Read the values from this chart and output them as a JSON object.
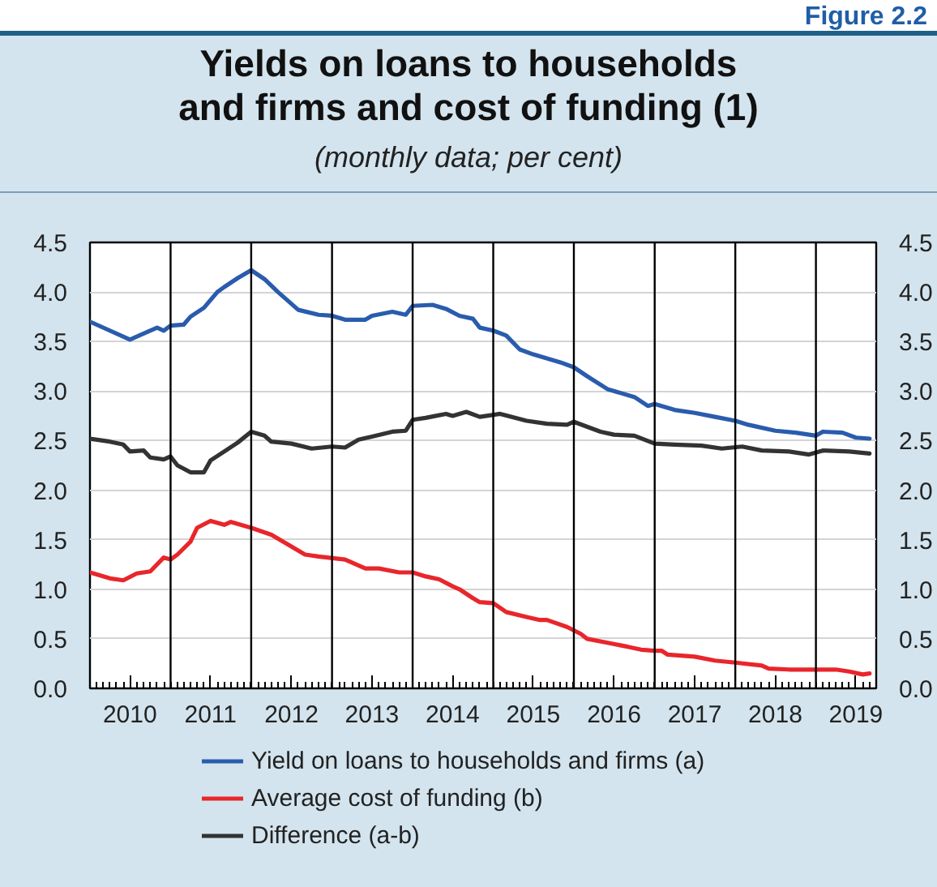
{
  "chart_data": {
    "type": "line",
    "title": "Yields on loans to households and firms and cost of funding (1)",
    "subtitle": "(monthly data; per cent)",
    "annotations": [
      "Figure 2.2"
    ],
    "xlim": [
      "2010-01",
      "2019-10"
    ],
    "xticks": [
      {
        "value": "2010-02",
        "label": null
      },
      {
        "value": "2010-03",
        "label": null
      },
      {
        "value": "2010-04",
        "label": null
      },
      {
        "value": "2010-05",
        "label": null
      },
      {
        "value": "2010-06",
        "label": null
      },
      {
        "value": "2010-07",
        "label": "2010"
      },
      {
        "value": "2010-08",
        "label": null
      },
      {
        "value": "2010-09",
        "label": null
      },
      {
        "value": "2010-10",
        "label": null
      },
      {
        "value": "2010-11",
        "label": null
      },
      {
        "value": "2010-12",
        "label": null
      },
      {
        "value": "2011-01",
        "label": null
      },
      {
        "value": "2011-02",
        "label": null
      },
      {
        "value": "2011-03",
        "label": null
      },
      {
        "value": "2011-04",
        "label": null
      },
      {
        "value": "2011-05",
        "label": null
      },
      {
        "value": "2011-06",
        "label": null
      },
      {
        "value": "2011-07",
        "label": "2011"
      },
      {
        "value": "2011-08",
        "label": null
      },
      {
        "value": "2011-09",
        "label": null
      },
      {
        "value": "2011-10",
        "label": null
      },
      {
        "value": "2011-11",
        "label": null
      },
      {
        "value": "2011-12",
        "label": null
      },
      {
        "value": "2012-01",
        "label": null
      },
      {
        "value": "2012-02",
        "label": null
      },
      {
        "value": "2012-03",
        "label": null
      },
      {
        "value": "2012-04",
        "label": null
      },
      {
        "value": "2012-05",
        "label": null
      },
      {
        "value": "2012-06",
        "label": null
      },
      {
        "value": "2012-07",
        "label": "2012"
      },
      {
        "value": "2012-08",
        "label": null
      },
      {
        "value": "2012-09",
        "label": null
      },
      {
        "value": "2012-10",
        "label": null
      },
      {
        "value": "2012-11",
        "label": null
      },
      {
        "value": "2012-12",
        "label": null
      },
      {
        "value": "2013-01",
        "label": null
      },
      {
        "value": "2013-02",
        "label": null
      },
      {
        "value": "2013-03",
        "label": null
      },
      {
        "value": "2013-04",
        "label": null
      },
      {
        "value": "2013-05",
        "label": null
      },
      {
        "value": "2013-06",
        "label": null
      },
      {
        "value": "2013-07",
        "label": "2013"
      },
      {
        "value": "2013-08",
        "label": null
      },
      {
        "value": "2013-09",
        "label": null
      },
      {
        "value": "2013-10",
        "label": null
      },
      {
        "value": "2013-11",
        "label": null
      },
      {
        "value": "2013-12",
        "label": null
      },
      {
        "value": "2014-01",
        "label": null
      },
      {
        "value": "2014-02",
        "label": null
      },
      {
        "value": "2014-03",
        "label": null
      },
      {
        "value": "2014-04",
        "label": null
      },
      {
        "value": "2014-05",
        "label": null
      },
      {
        "value": "2014-06",
        "label": null
      },
      {
        "value": "2014-07",
        "label": "2014"
      },
      {
        "value": "2014-08",
        "label": null
      },
      {
        "value": "2014-09",
        "label": null
      },
      {
        "value": "2014-10",
        "label": null
      },
      {
        "value": "2014-11",
        "label": null
      },
      {
        "value": "2014-12",
        "label": null
      },
      {
        "value": "2015-01",
        "label": null
      },
      {
        "value": "2015-02",
        "label": null
      },
      {
        "value": "2015-03",
        "label": null
      },
      {
        "value": "2015-04",
        "label": null
      },
      {
        "value": "2015-05",
        "label": null
      },
      {
        "value": "2015-06",
        "label": null
      },
      {
        "value": "2015-07",
        "label": "2015"
      },
      {
        "value": "2015-08",
        "label": null
      },
      {
        "value": "2015-09",
        "label": null
      },
      {
        "value": "2015-10",
        "label": null
      },
      {
        "value": "2015-11",
        "label": null
      },
      {
        "value": "2015-12",
        "label": null
      },
      {
        "value": "2016-01",
        "label": null
      },
      {
        "value": "2016-02",
        "label": null
      },
      {
        "value": "2016-03",
        "label": null
      },
      {
        "value": "2016-04",
        "label": null
      },
      {
        "value": "2016-05",
        "label": null
      },
      {
        "value": "2016-06",
        "label": null
      },
      {
        "value": "2016-07",
        "label": "2016"
      },
      {
        "value": "2016-08",
        "label": null
      },
      {
        "value": "2016-09",
        "label": null
      },
      {
        "value": "2016-10",
        "label": null
      },
      {
        "value": "2016-11",
        "label": null
      },
      {
        "value": "2016-12",
        "label": null
      },
      {
        "value": "2017-01",
        "label": null
      },
      {
        "value": "2017-02",
        "label": null
      },
      {
        "value": "2017-03",
        "label": null
      },
      {
        "value": "2017-04",
        "label": null
      },
      {
        "value": "2017-05",
        "label": null
      },
      {
        "value": "2017-06",
        "label": null
      },
      {
        "value": "2017-07",
        "label": "2017"
      },
      {
        "value": "2017-08",
        "label": null
      },
      {
        "value": "2017-09",
        "label": null
      },
      {
        "value": "2017-10",
        "label": null
      },
      {
        "value": "2017-11",
        "label": null
      },
      {
        "value": "2017-12",
        "label": null
      },
      {
        "value": "2018-01",
        "label": null
      },
      {
        "value": "2018-02",
        "label": null
      },
      {
        "value": "2018-03",
        "label": null
      },
      {
        "value": "2018-04",
        "label": null
      },
      {
        "value": "2018-05",
        "label": null
      },
      {
        "value": "2018-06",
        "label": null
      },
      {
        "value": "2018-07",
        "label": "2018"
      },
      {
        "value": "2018-08",
        "label": null
      },
      {
        "value": "2018-09",
        "label": null
      },
      {
        "value": "2018-10",
        "label": null
      },
      {
        "value": "2018-11",
        "label": null
      },
      {
        "value": "2018-12",
        "label": null
      },
      {
        "value": "2019-01",
        "label": null
      },
      {
        "value": "2019-02",
        "label": null
      },
      {
        "value": "2019-03",
        "label": null
      },
      {
        "value": "2019-04",
        "label": null
      },
      {
        "value": "2019-05",
        "label": null
      },
      {
        "value": "2019-06",
        "label": null
      },
      {
        "value": "2019-07",
        "label": "2019"
      },
      {
        "value": "2019-08",
        "label": null
      },
      {
        "value": "2019-09",
        "label": null
      }
    ],
    "ylim": [
      0,
      4.5
    ],
    "yticks": [
      {
        "value": 0,
        "label": "0.0"
      },
      0.5,
      {
        "value": 1,
        "label": "1.0"
      },
      1.5,
      {
        "value": 2,
        "label": "2.0"
      },
      2.5,
      {
        "value": 3,
        "label": "3.0"
      },
      3.5,
      {
        "value": 4,
        "label": "4.0"
      },
      4.5
    ],
    "y2lim": [
      0,
      4.5
    ],
    "y2ticks": [
      {
        "value": 0,
        "label": "0.0"
      },
      0.5,
      {
        "value": 1,
        "label": "1.0"
      },
      1.5,
      {
        "value": 2,
        "label": "2.0"
      },
      2.5,
      {
        "value": 3,
        "label": "3.0"
      },
      3.5,
      {
        "value": 4,
        "label": "4.0"
      },
      4.5
    ],
    "grid": "y",
    "legend": "bottom",
    "ref_lines": [
      {
        "axis": "x",
        "value": "2011-01",
        "color": "#000000"
      },
      {
        "axis": "x",
        "value": "2012-01",
        "color": "#000000"
      },
      {
        "axis": "x",
        "value": "2013-01",
        "color": "#000000"
      },
      {
        "axis": "x",
        "value": "2014-01",
        "color": "#000000"
      },
      {
        "axis": "x",
        "value": "2015-01",
        "color": "#000000"
      },
      {
        "axis": "x",
        "value": "2016-01",
        "color": "#000000"
      },
      {
        "axis": "x",
        "value": "2017-01",
        "color": "#000000"
      },
      {
        "axis": "x",
        "value": "2018-01",
        "color": "#000000"
      },
      {
        "axis": "x",
        "value": "2019-01",
        "color": "#000000"
      }
    ],
    "series": [
      {
        "name": "Yield on loans to households and firms (a)",
        "color": "#2a5cad",
        "x": [
          "2010-01",
          "2010-07",
          "2010-09",
          "2010-11",
          "2010-12",
          "2011-01",
          "2011-03",
          "2011-04",
          "2011-06",
          "2011-08",
          "2011-09",
          "2011-11",
          "2012-01",
          "2012-03",
          "2012-05",
          "2012-08",
          "2012-11",
          "2013-01",
          "2013-03",
          "2013-06",
          "2013-07",
          "2013-10",
          "2013-12",
          "2014-01",
          "2014-04",
          "2014-06",
          "2014-08",
          "2014-10",
          "2014-11",
          "2015-01",
          "2015-03",
          "2015-05",
          "2015-07",
          "2015-11",
          "2016-01",
          "2016-03",
          "2016-06",
          "2016-10",
          "2016-12",
          "2017-01",
          "2017-04",
          "2017-07",
          "2017-10",
          "2018-01",
          "2018-03",
          "2018-07",
          "2018-10",
          "2019-01",
          "2019-02",
          "2019-05",
          "2019-07",
          "2019-09"
        ],
        "values": [
          3.7,
          3.52,
          3.58,
          3.64,
          3.61,
          3.66,
          3.67,
          3.75,
          3.84,
          4.0,
          4.05,
          4.14,
          4.22,
          4.13,
          4.0,
          3.82,
          3.77,
          3.76,
          3.72,
          3.72,
          3.76,
          3.8,
          3.77,
          3.86,
          3.87,
          3.83,
          3.76,
          3.73,
          3.64,
          3.61,
          3.56,
          3.42,
          3.37,
          3.29,
          3.24,
          3.15,
          3.02,
          2.94,
          2.85,
          2.87,
          2.81,
          2.78,
          2.74,
          2.7,
          2.66,
          2.6,
          2.58,
          2.55,
          2.59,
          2.58,
          2.53,
          2.52
        ]
      },
      {
        "name": "Average cost of funding (b)",
        "color": "#e8262b",
        "x": [
          "2010-01",
          "2010-04",
          "2010-06",
          "2010-08",
          "2010-10",
          "2010-12",
          "2011-01",
          "2011-02",
          "2011-04",
          "2011-05",
          "2011-07",
          "2011-09",
          "2011-10",
          "2012-01",
          "2012-04",
          "2012-06",
          "2012-09",
          "2012-11",
          "2013-03",
          "2013-06",
          "2013-08",
          "2013-11",
          "2014-01",
          "2014-03",
          "2014-05",
          "2014-07",
          "2014-08",
          "2014-10",
          "2014-11",
          "2015-01",
          "2015-03",
          "2015-06",
          "2015-08",
          "2015-09",
          "2015-12",
          "2016-02",
          "2016-03",
          "2016-06",
          "2016-09",
          "2016-11",
          "2017-01",
          "2017-02",
          "2017-03",
          "2017-07",
          "2017-10",
          "2018-01",
          "2018-05",
          "2018-06",
          "2018-09",
          "2019-04",
          "2019-06",
          "2019-08",
          "2019-09"
        ],
        "values": [
          1.17,
          1.11,
          1.09,
          1.16,
          1.18,
          1.32,
          1.3,
          1.35,
          1.48,
          1.62,
          1.69,
          1.65,
          1.68,
          1.62,
          1.55,
          1.47,
          1.35,
          1.33,
          1.3,
          1.21,
          1.21,
          1.17,
          1.17,
          1.13,
          1.1,
          1.03,
          1.0,
          0.91,
          0.87,
          0.86,
          0.77,
          0.72,
          0.69,
          0.69,
          0.62,
          0.55,
          0.5,
          0.46,
          0.42,
          0.39,
          0.38,
          0.38,
          0.34,
          0.32,
          0.28,
          0.26,
          0.23,
          0.2,
          0.19,
          0.19,
          0.17,
          0.14,
          0.15
        ]
      },
      {
        "name": "Difference (a-b)",
        "color": "#333333",
        "x": [
          "2010-01",
          "2010-04",
          "2010-06",
          "2010-07",
          "2010-09",
          "2010-10",
          "2010-12",
          "2011-01",
          "2011-02",
          "2011-04",
          "2011-06",
          "2011-07",
          "2011-09",
          "2011-11",
          "2012-01",
          "2012-03",
          "2012-04",
          "2012-07",
          "2012-10",
          "2013-01",
          "2013-03",
          "2013-05",
          "2013-07",
          "2013-10",
          "2013-12",
          "2014-01",
          "2014-03",
          "2014-06",
          "2014-07",
          "2014-09",
          "2014-11",
          "2015-02",
          "2015-06",
          "2015-09",
          "2015-12",
          "2016-01",
          "2016-05",
          "2016-07",
          "2016-10",
          "2017-01",
          "2017-04",
          "2017-08",
          "2017-11",
          "2018-02",
          "2018-05",
          "2018-09",
          "2018-12",
          "2019-02",
          "2019-06",
          "2019-09"
        ],
        "values": [
          2.52,
          2.49,
          2.46,
          2.39,
          2.4,
          2.33,
          2.31,
          2.34,
          2.25,
          2.18,
          2.18,
          2.3,
          2.39,
          2.48,
          2.59,
          2.55,
          2.49,
          2.47,
          2.42,
          2.44,
          2.43,
          2.51,
          2.54,
          2.59,
          2.6,
          2.71,
          2.73,
          2.77,
          2.75,
          2.79,
          2.74,
          2.77,
          2.7,
          2.67,
          2.66,
          2.69,
          2.59,
          2.56,
          2.55,
          2.47,
          2.46,
          2.45,
          2.42,
          2.44,
          2.4,
          2.39,
          2.36,
          2.4,
          2.39,
          2.37
        ]
      }
    ]
  }
}
